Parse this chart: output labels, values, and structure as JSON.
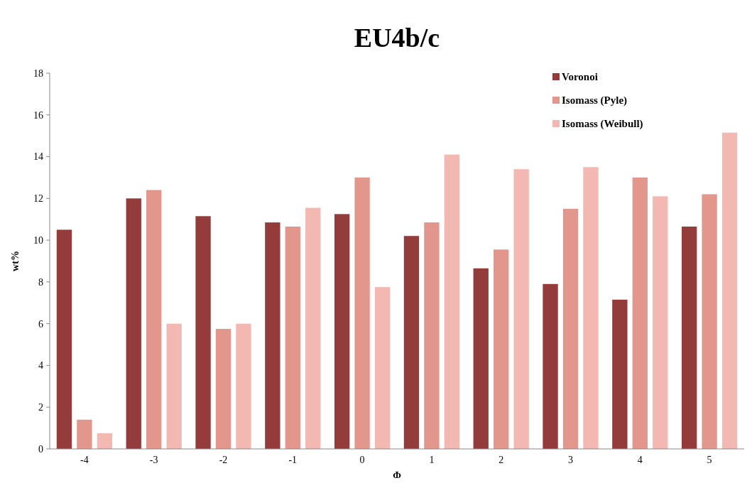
{
  "chart_data": {
    "type": "bar",
    "title": "EU4b/c",
    "xlabel": "Φ",
    "ylabel": "wt%",
    "categories": [
      "-4",
      "-3",
      "-2",
      "-1",
      "0",
      "1",
      "2",
      "3",
      "4",
      "5"
    ],
    "series": [
      {
        "name": "Voronoi",
        "color": "#943c3c",
        "values": [
          10.5,
          12.0,
          11.15,
          10.85,
          11.25,
          10.2,
          8.65,
          7.9,
          7.15,
          10.65
        ]
      },
      {
        "name": "Isomass (Pyle)",
        "color": "#e3968c",
        "values": [
          1.4,
          12.4,
          5.75,
          10.65,
          13.0,
          10.85,
          9.55,
          11.5,
          13.0,
          12.2
        ]
      },
      {
        "name": "Isomass (Weibull)",
        "color": "#f4b8b2",
        "values": [
          0.75,
          6.0,
          6.0,
          11.55,
          7.75,
          14.1,
          13.4,
          13.5,
          12.1,
          15.15
        ]
      }
    ],
    "ylim": [
      0,
      18
    ],
    "yticks": [
      0,
      2,
      4,
      6,
      8,
      10,
      12,
      14,
      16,
      18
    ],
    "grid": false,
    "legend": "top right"
  }
}
